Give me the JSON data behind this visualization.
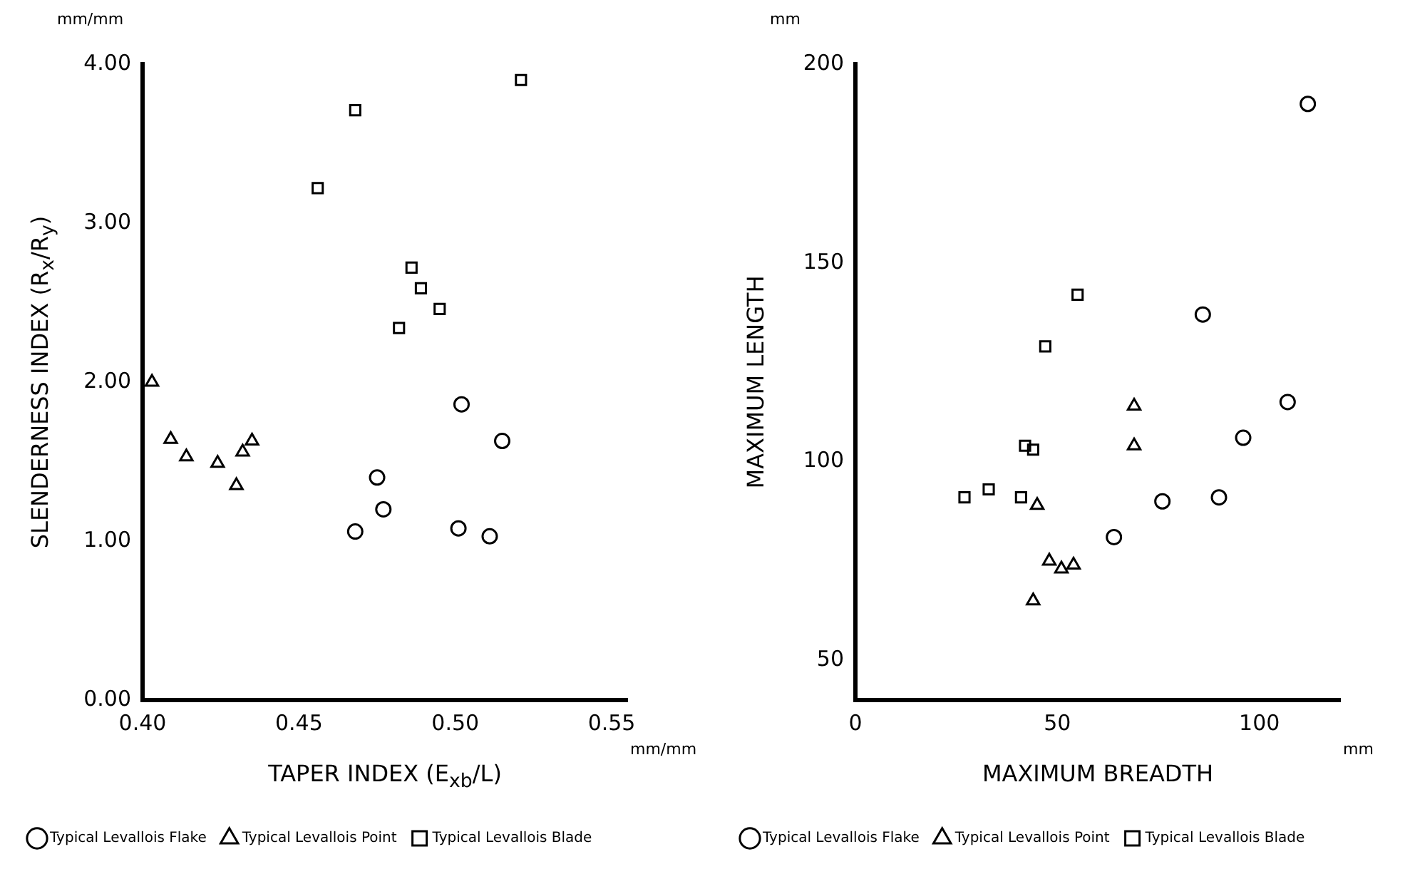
{
  "chart_data": [
    {
      "type": "scatter",
      "xlabel": "TAPER INDEX (E$_{xb}$/L)",
      "ylabel": "SLENDERNESS INDEX (R$_{x}$/R$_{y}$)",
      "annotations": [
        "mm/mm",
        "mm/mm"
      ],
      "xlim": [
        0.4,
        0.555
      ],
      "xticks": [
        {
          "value": 0.4,
          "label": "0.40"
        },
        {
          "value": 0.45,
          "label": "0.45"
        },
        {
          "value": 0.5,
          "label": "0.50"
        },
        {
          "value": 0.55,
          "label": "0.55"
        }
      ],
      "ylim": [
        0,
        4
      ],
      "yticks": [
        {
          "value": 0,
          "label": "0.00"
        },
        {
          "value": 1,
          "label": "1.00"
        },
        {
          "value": 2,
          "label": "2.00"
        },
        {
          "value": 3,
          "label": "3.00"
        },
        {
          "value": 4,
          "label": "4.00"
        }
      ],
      "grid": false,
      "legend": "bottom",
      "series": [
        {
          "name": "Typical Levallois Flake",
          "color": "#000000",
          "marker": "circle",
          "x": [
            0.468,
            0.475,
            0.477,
            0.501,
            0.511,
            0.515,
            0.502
          ],
          "values": [
            1.06,
            1.4,
            1.2,
            1.08,
            1.03,
            1.63,
            1.86
          ]
        },
        {
          "name": "Typical Levallois Point",
          "color": "#000000",
          "marker": "triangle",
          "x": [
            0.403,
            0.409,
            0.414,
            0.424,
            0.43,
            0.432,
            0.435
          ],
          "values": [
            2.0,
            1.64,
            1.53,
            1.49,
            1.35,
            1.56,
            1.63
          ]
        },
        {
          "name": "Typical Levallois Blade",
          "color": "#000000",
          "marker": "square",
          "x": [
            0.456,
            0.468,
            0.521,
            0.486,
            0.489,
            0.495,
            0.482
          ],
          "values": [
            3.22,
            3.71,
            3.9,
            2.72,
            2.59,
            2.46,
            2.34
          ]
        }
      ]
    },
    {
      "type": "scatter",
      "xlabel": "MAXIMUM BREADTH",
      "ylabel": "MAXIMUM LENGTH",
      "annotations": [
        "mm",
        "mm"
      ],
      "xlim": [
        0,
        120
      ],
      "xticks": [
        0,
        50,
        100
      ],
      "ylim": [
        40,
        200
      ],
      "yticks": [
        50,
        100,
        150,
        200
      ],
      "grid": false,
      "legend": "bottom",
      "series": [
        {
          "name": "Typical Levallois Flake",
          "color": "#000000",
          "marker": "circle",
          "x": [
            112,
            86,
            107,
            96,
            90,
            76,
            64
          ],
          "values": [
            190,
            137,
            115,
            106,
            91,
            90,
            81
          ]
        },
        {
          "name": "Typical Levallois Point",
          "color": "#000000",
          "marker": "triangle",
          "x": [
            69,
            69,
            45,
            48,
            51,
            54,
            44
          ],
          "values": [
            114,
            104,
            89,
            75,
            73,
            74,
            65
          ]
        },
        {
          "name": "Typical Levallois Blade",
          "color": "#000000",
          "marker": "square",
          "x": [
            27,
            33,
            41,
            42,
            44,
            55,
            47
          ],
          "values": [
            91,
            93,
            91,
            104,
            103,
            142,
            129
          ]
        }
      ]
    }
  ]
}
